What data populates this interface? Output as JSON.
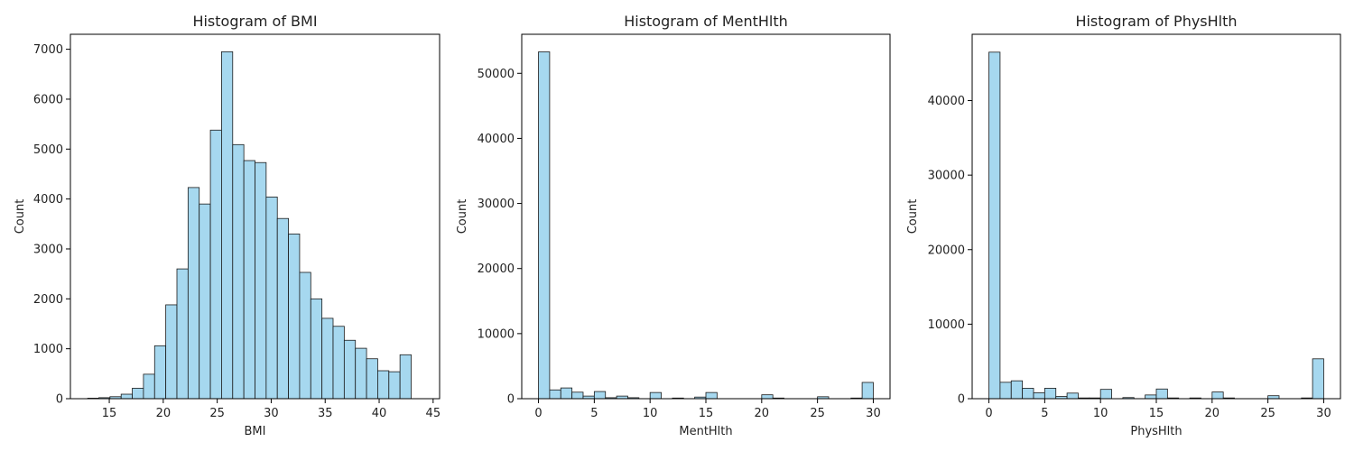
{
  "colors": {
    "bar_fill": "#a6d8ef",
    "bar_edge": "#1a1a1a",
    "axis": "#000000"
  },
  "chart_data": [
    {
      "type": "bar",
      "title": "Histogram of BMI",
      "xlabel": "BMI",
      "ylabel": "Count",
      "xlim": [
        11.4,
        45.6
      ],
      "ylim": [
        0,
        7300
      ],
      "xticks": [
        15,
        20,
        25,
        30,
        35,
        40,
        45
      ],
      "yticks": [
        0,
        1000,
        2000,
        3000,
        4000,
        5000,
        6000,
        7000
      ],
      "bin_edges": [
        13,
        14.033,
        15.067,
        16.1,
        17.133,
        18.167,
        19.2,
        20.233,
        21.267,
        22.3,
        23.333,
        24.367,
        25.4,
        26.433,
        27.467,
        28.5,
        29.533,
        30.567,
        31.6,
        32.633,
        33.667,
        34.7,
        35.733,
        36.767,
        37.8,
        38.833,
        39.867,
        40.9,
        41.933,
        42.967,
        44
      ],
      "values": [
        10,
        20,
        40,
        90,
        210,
        490,
        1060,
        1880,
        2600,
        4230,
        3900,
        5380,
        6950,
        5090,
        4770,
        4730,
        4040,
        3610,
        3300,
        2530,
        2000,
        1610,
        1450,
        1170,
        1010,
        800,
        560,
        540,
        880,
        0
      ]
    },
    {
      "type": "bar",
      "title": "Histogram of MentHlth",
      "xlabel": "MentHlth",
      "ylabel": "Count",
      "xlim": [
        -1.5,
        31.5
      ],
      "ylim": [
        0,
        56000
      ],
      "xticks": [
        0,
        5,
        10,
        15,
        20,
        25,
        30
      ],
      "yticks": [
        0,
        10000,
        20000,
        30000,
        40000,
        50000
      ],
      "bin_edges": [
        0,
        1,
        2,
        3,
        4,
        5,
        6,
        7,
        8,
        9,
        10,
        11,
        12,
        13,
        14,
        15,
        16,
        17,
        18,
        19,
        20,
        21,
        22,
        23,
        24,
        25,
        26,
        27,
        28,
        29,
        30
      ],
      "values": [
        53300,
        1350,
        1650,
        1000,
        400,
        1100,
        150,
        400,
        150,
        0,
        950,
        0,
        100,
        0,
        250,
        950,
        0,
        0,
        0,
        0,
        600,
        100,
        0,
        0,
        0,
        300,
        0,
        0,
        100,
        2500
      ]
    },
    {
      "type": "bar",
      "title": "Histogram of PhysHlth",
      "xlabel": "PhysHlth",
      "ylabel": "Count",
      "xlim": [
        -1.5,
        31.5
      ],
      "ylim": [
        0,
        48900
      ],
      "xticks": [
        0,
        5,
        10,
        15,
        20,
        25,
        30
      ],
      "yticks": [
        0,
        10000,
        20000,
        30000,
        40000
      ],
      "bin_edges": [
        0,
        1,
        2,
        3,
        4,
        5,
        6,
        7,
        8,
        9,
        10,
        11,
        12,
        13,
        14,
        15,
        16,
        17,
        18,
        19,
        20,
        21,
        22,
        23,
        24,
        25,
        26,
        27,
        28,
        29,
        30
      ],
      "values": [
        46500,
        2200,
        2400,
        1400,
        800,
        1400,
        300,
        750,
        100,
        100,
        1250,
        0,
        150,
        0,
        500,
        1300,
        100,
        0,
        100,
        0,
        900,
        100,
        0,
        0,
        0,
        400,
        0,
        0,
        100,
        5350
      ]
    }
  ]
}
